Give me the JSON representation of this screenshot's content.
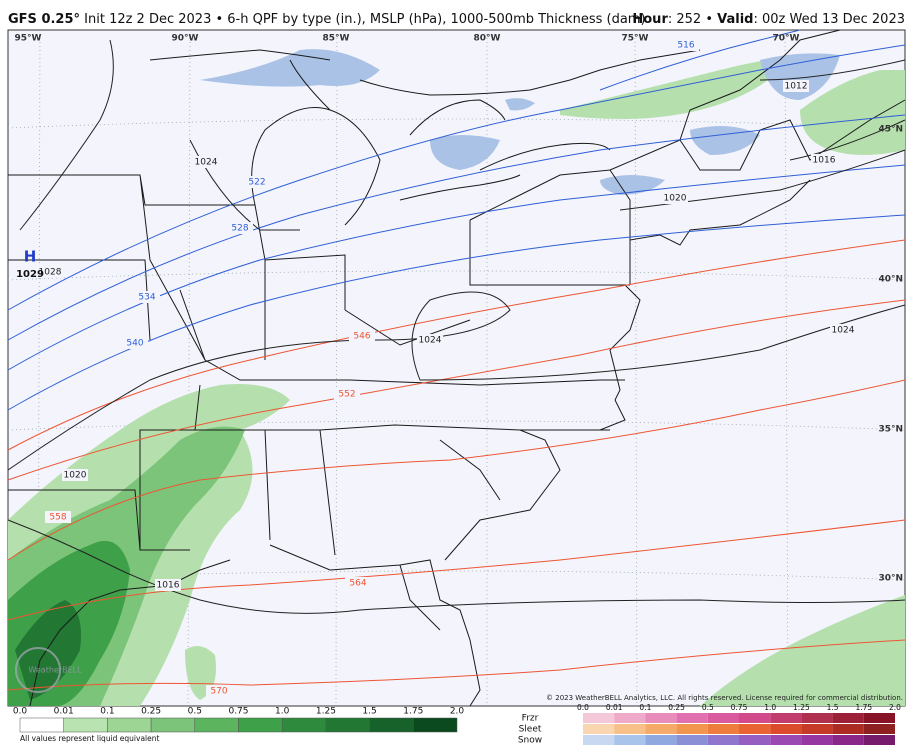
{
  "header": {
    "model": "GFS 0.25°",
    "description": " Init 12z 2 Dec 2023 • 6-h QPF by type (in.), MSLP (hPa), 1000-500mb Thickness (dam)",
    "hour_key": "Hour",
    "hour_value": ": 252 • ",
    "valid_key": "Valid",
    "valid_value": ": 00z Wed 13 Dec 2023"
  },
  "map": {
    "longitude_labels": [
      "95°W",
      "90°W",
      "85°W",
      "80°W",
      "75°W",
      "70°W"
    ],
    "latitude_labels": [
      "45°N",
      "40°N",
      "35°N",
      "30°N"
    ],
    "thickness_labels_cold": [
      "516",
      "522",
      "528",
      "534",
      "540"
    ],
    "thickness_labels_warm": [
      "546",
      "552",
      "558",
      "564",
      "570"
    ],
    "isobar_labels": [
      "1012",
      "1016",
      "1020",
      "1024",
      "1024",
      "1024",
      "1028",
      "1020",
      "1016"
    ],
    "high_symbol": "H",
    "high_value": "1029",
    "watermark": "WeatherBELL",
    "copyright": "© 2023 WeatherBELL Analytics, LLC. All rights reserved. License required for commercial distribution."
  },
  "legend": {
    "rain_labels": [
      "0.0",
      "0.01",
      "0.1",
      "0.25",
      "0.5",
      "0.75",
      "1.0",
      "1.25",
      "1.5",
      "1.75",
      "2.0"
    ],
    "rain_colors": [
      "#ffffff",
      "#b9e3b0",
      "#9dd595",
      "#7cc47a",
      "#5cb45e",
      "#3fa04a",
      "#2e8b3d",
      "#227733",
      "#17622a",
      "#0b4a1e"
    ],
    "footnote": "All values represent liquid equivalent",
    "winter_labels": [
      "0.0",
      "0.01",
      "0.1",
      "0.25",
      "0.5",
      "0.75",
      "1.0",
      "1.25",
      "1.5",
      "1.75",
      "2.0"
    ],
    "winter_types": [
      {
        "name": "Frzr",
        "colors": [
          "#f4c8d8",
          "#eeaac8",
          "#e88cbc",
          "#e070b0",
          "#da5aa0",
          "#d24a8c",
          "#c23c6e",
          "#b03050",
          "#9c2038",
          "#861426"
        ]
      },
      {
        "name": "Sleet",
        "colors": [
          "#f9d6b0",
          "#f7c089",
          "#f5aa6a",
          "#f2954f",
          "#ee7c3c",
          "#e96432",
          "#dc4c2c",
          "#c63a28",
          "#ac2c24",
          "#8e2020"
        ]
      },
      {
        "name": "Snow",
        "colors": [
          "#c8d8f0",
          "#a8c4ea",
          "#8fa8e0",
          "#8a8fd6",
          "#9076cc",
          "#965ec0",
          "#9a48b2",
          "#9636a0",
          "#8a2688",
          "#761a6c"
        ]
      }
    ]
  }
}
